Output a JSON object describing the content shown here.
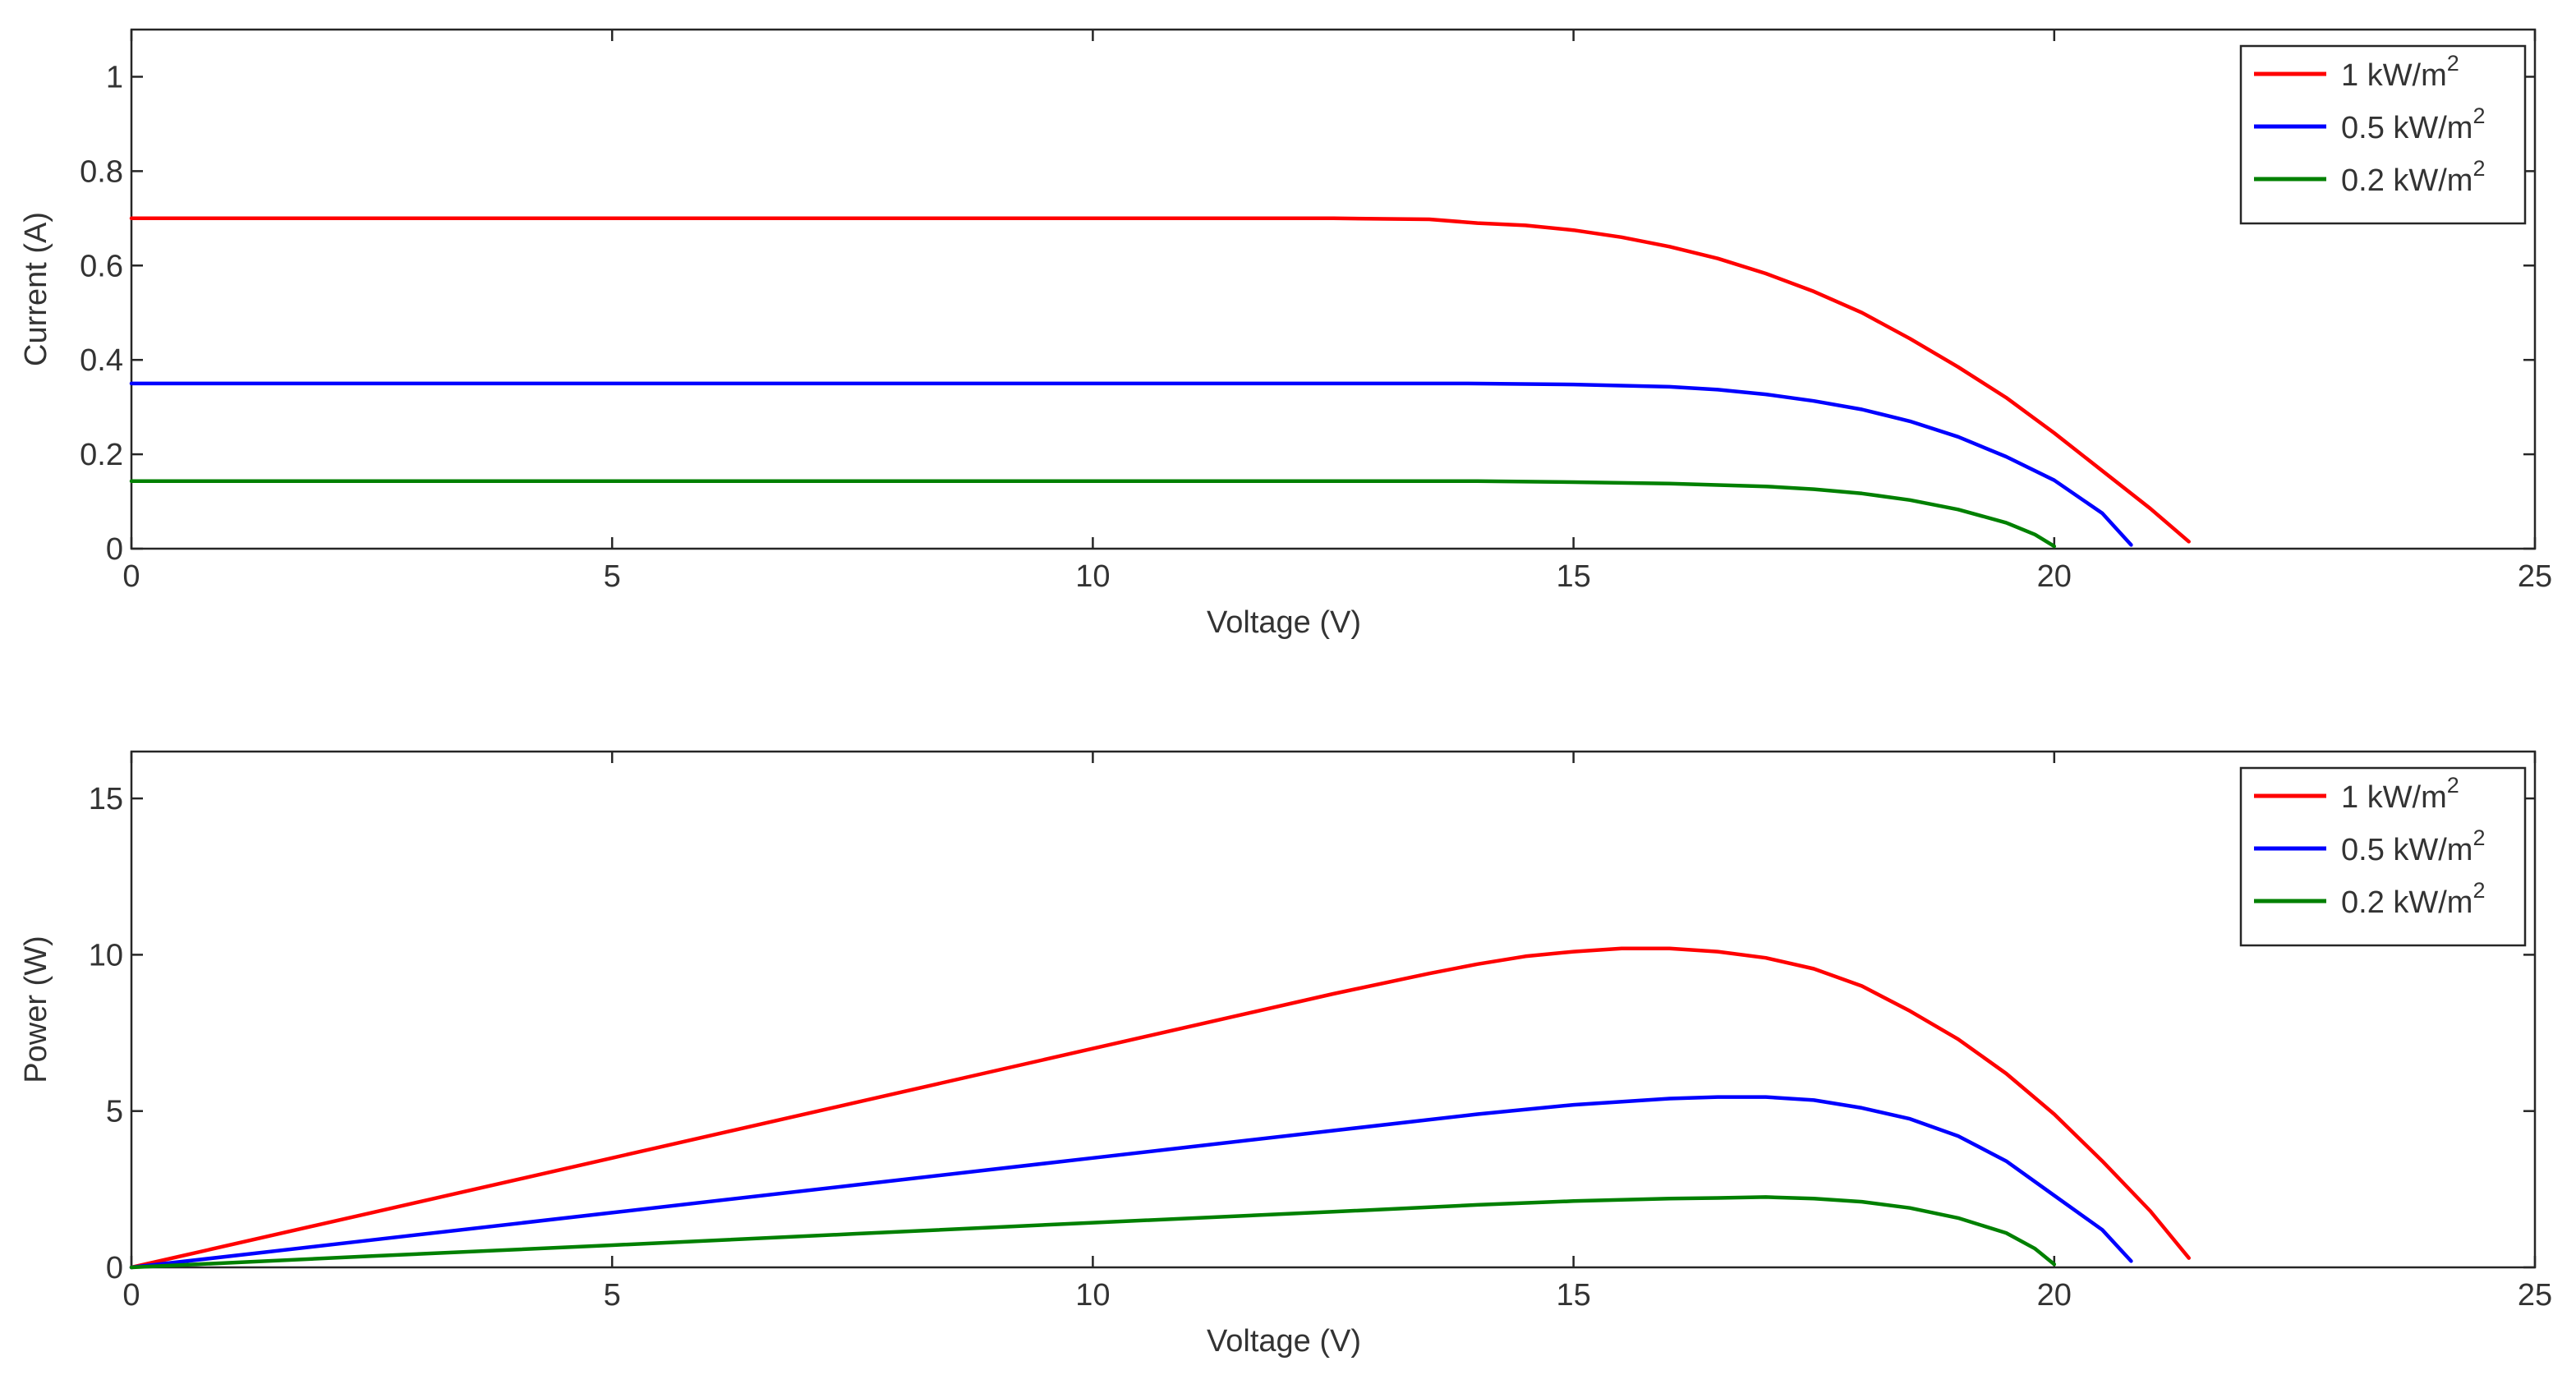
{
  "chart_data": [
    {
      "type": "line",
      "title": "",
      "xlabel": "Voltage (V)",
      "ylabel": "Current (A)",
      "xlim": [
        0,
        25
      ],
      "ylim": [
        0,
        1.1
      ],
      "xticks": [
        0,
        5,
        10,
        15,
        20,
        25
      ],
      "yticks": [
        0,
        0.2,
        0.4,
        0.6,
        0.8,
        1
      ],
      "xtick_labels": [
        "0",
        "5",
        "10",
        "15",
        "20",
        "25"
      ],
      "ytick_labels": [
        "0",
        "0.2",
        "0.4",
        "0.6",
        "0.8",
        "1"
      ],
      "grid": false,
      "legend_position": "top-right",
      "series": [
        {
          "name": "1 kW/m2",
          "color": "#ff0000",
          "points": [
            [
              0,
              0.7
            ],
            [
              5,
              0.7
            ],
            [
              10,
              0.7
            ],
            [
              12.5,
              0.7
            ],
            [
              13.5,
              0.698
            ],
            [
              14,
              0.69
            ],
            [
              14.5,
              0.685
            ],
            [
              15,
              0.675
            ],
            [
              15.5,
              0.66
            ],
            [
              16,
              0.64
            ],
            [
              16.5,
              0.615
            ],
            [
              17,
              0.583
            ],
            [
              17.5,
              0.545
            ],
            [
              18,
              0.5
            ],
            [
              18.5,
              0.445
            ],
            [
              19,
              0.385
            ],
            [
              19.5,
              0.32
            ],
            [
              20,
              0.245
            ],
            [
              20.5,
              0.165
            ],
            [
              21,
              0.085
            ],
            [
              21.4,
              0.015
            ]
          ]
        },
        {
          "name": "0.5 kW/m2",
          "color": "#0000ff",
          "points": [
            [
              0,
              0.35
            ],
            [
              5,
              0.35
            ],
            [
              10,
              0.35
            ],
            [
              13.9,
              0.35
            ],
            [
              15,
              0.348
            ],
            [
              16,
              0.343
            ],
            [
              16.5,
              0.337
            ],
            [
              17,
              0.327
            ],
            [
              17.5,
              0.313
            ],
            [
              18,
              0.295
            ],
            [
              18.5,
              0.27
            ],
            [
              19,
              0.237
            ],
            [
              19.5,
              0.195
            ],
            [
              20,
              0.145
            ],
            [
              20.5,
              0.075
            ],
            [
              20.8,
              0.008
            ]
          ]
        },
        {
          "name": "0.2 kW/m2",
          "color": "#008000",
          "points": [
            [
              0,
              0.143
            ],
            [
              5,
              0.143
            ],
            [
              10,
              0.143
            ],
            [
              14,
              0.143
            ],
            [
              15,
              0.141
            ],
            [
              16,
              0.138
            ],
            [
              17,
              0.132
            ],
            [
              17.5,
              0.126
            ],
            [
              18,
              0.117
            ],
            [
              18.5,
              0.103
            ],
            [
              19,
              0.083
            ],
            [
              19.5,
              0.055
            ],
            [
              19.8,
              0.03
            ],
            [
              20,
              0.005
            ]
          ]
        }
      ]
    },
    {
      "type": "line",
      "title": "",
      "xlabel": "Voltage (V)",
      "ylabel": "Power (W)",
      "xlim": [
        0,
        25
      ],
      "ylim": [
        0,
        16.5
      ],
      "xticks": [
        0,
        5,
        10,
        15,
        20,
        25
      ],
      "yticks": [
        0,
        5,
        10,
        15
      ],
      "xtick_labels": [
        "0",
        "5",
        "10",
        "15",
        "20",
        "25"
      ],
      "ytick_labels": [
        "0",
        "5",
        "10",
        "15"
      ],
      "grid": false,
      "legend_position": "top-right",
      "series": [
        {
          "name": "1 kW/m2",
          "color": "#ff0000",
          "points": [
            [
              0,
              0
            ],
            [
              2.5,
              1.75
            ],
            [
              5,
              3.5
            ],
            [
              7.5,
              5.25
            ],
            [
              10,
              7.0
            ],
            [
              12.5,
              8.75
            ],
            [
              13.5,
              9.4
            ],
            [
              14,
              9.7
            ],
            [
              14.5,
              9.95
            ],
            [
              15,
              10.1
            ],
            [
              15.5,
              10.2
            ],
            [
              16,
              10.2
            ],
            [
              16.5,
              10.1
            ],
            [
              17,
              9.9
            ],
            [
              17.5,
              9.55
            ],
            [
              18,
              9.0
            ],
            [
              18.5,
              8.2
            ],
            [
              19,
              7.3
            ],
            [
              19.5,
              6.2
            ],
            [
              20,
              4.9
            ],
            [
              20.5,
              3.4
            ],
            [
              21,
              1.8
            ],
            [
              21.4,
              0.3
            ]
          ]
        },
        {
          "name": "0.5 kW/m2",
          "color": "#0000ff",
          "points": [
            [
              0,
              0
            ],
            [
              2.5,
              0.875
            ],
            [
              5,
              1.75
            ],
            [
              7.5,
              2.625
            ],
            [
              10,
              3.5
            ],
            [
              12.5,
              4.375
            ],
            [
              14,
              4.9
            ],
            [
              15,
              5.2
            ],
            [
              16,
              5.4
            ],
            [
              16.5,
              5.45
            ],
            [
              17,
              5.45
            ],
            [
              17.5,
              5.35
            ],
            [
              18,
              5.1
            ],
            [
              18.5,
              4.75
            ],
            [
              19,
              4.2
            ],
            [
              19.5,
              3.4
            ],
            [
              20,
              2.3
            ],
            [
              20.5,
              1.2
            ],
            [
              20.8,
              0.2
            ]
          ]
        },
        {
          "name": "0.2 kW/m2",
          "color": "#008000",
          "points": [
            [
              0,
              0
            ],
            [
              2.5,
              0.36
            ],
            [
              5,
              0.71
            ],
            [
              7.5,
              1.07
            ],
            [
              10,
              1.43
            ],
            [
              12.5,
              1.78
            ],
            [
              14,
              2.0
            ],
            [
              15,
              2.12
            ],
            [
              16,
              2.2
            ],
            [
              16.5,
              2.22
            ],
            [
              17,
              2.25
            ],
            [
              17.5,
              2.2
            ],
            [
              18,
              2.1
            ],
            [
              18.5,
              1.9
            ],
            [
              19,
              1.58
            ],
            [
              19.5,
              1.1
            ],
            [
              19.8,
              0.6
            ],
            [
              20,
              0.1
            ]
          ]
        }
      ]
    }
  ]
}
